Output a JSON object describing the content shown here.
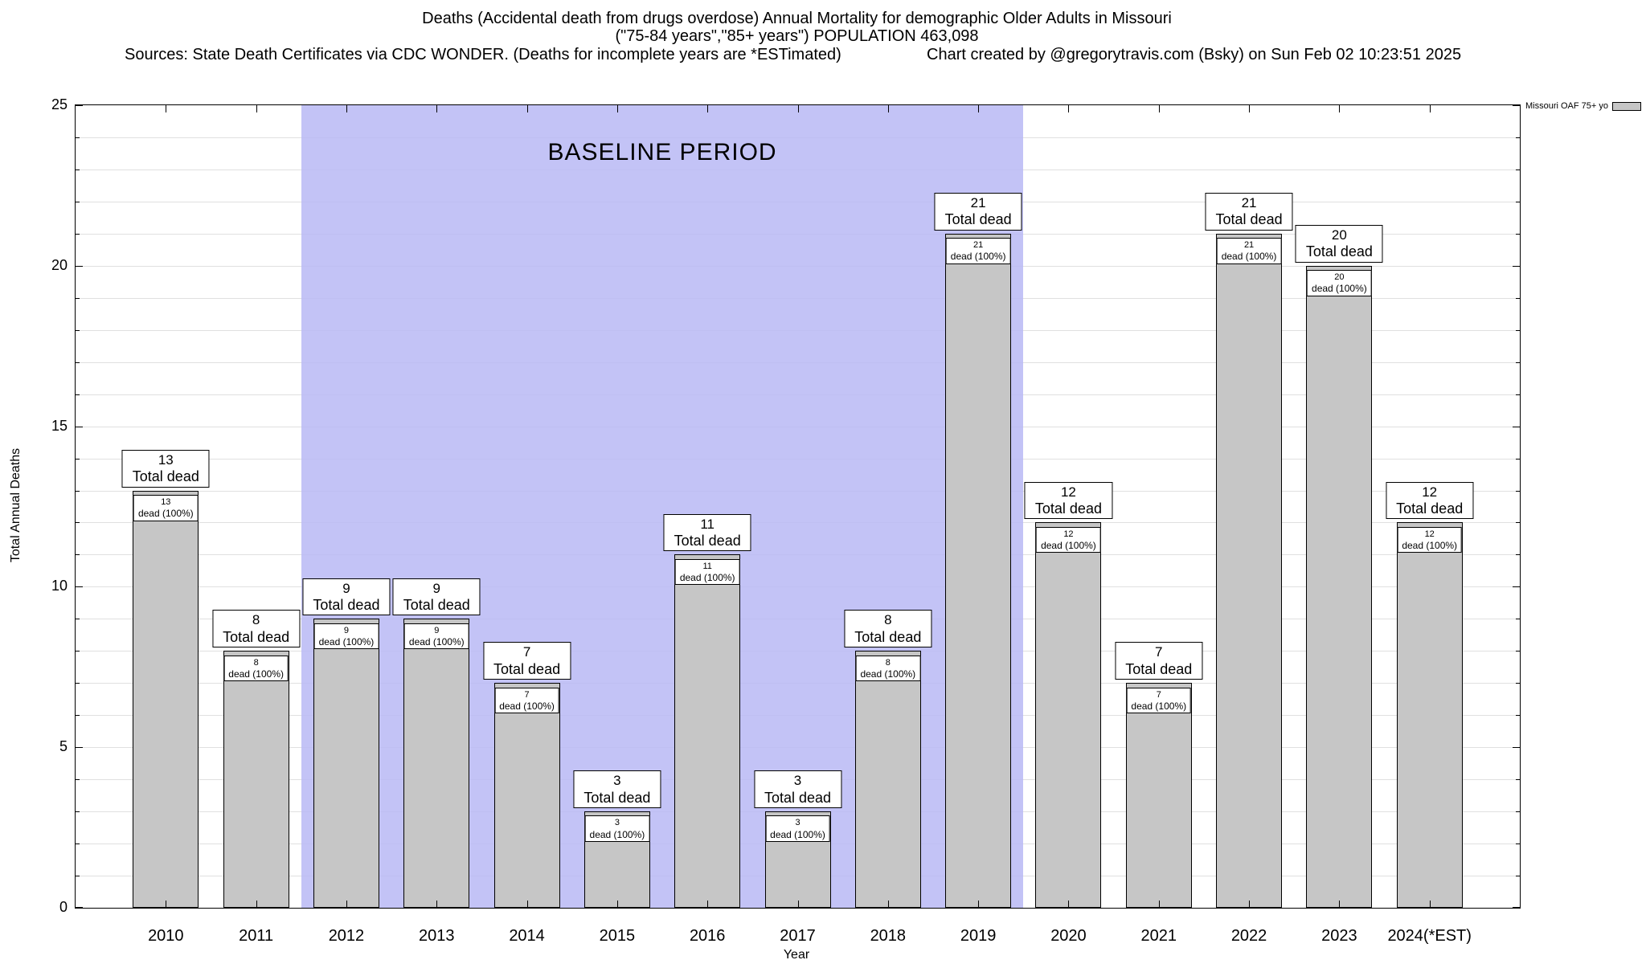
{
  "header": {
    "title_line1": "Deaths (Accidental death from drugs overdose) Annual Mortality for demographic Older Adults in Missouri",
    "title_line2": "(\"75-84 years\",\"85+ years\") POPULATION 463,098",
    "sources": "Sources: State Death Certificates via CDC WONDER. (Deaths for incomplete years are *ESTimated)",
    "credit": "Chart created by @gregorytravis.com (Bsky) on Sun Feb 02 10:23:51 2025"
  },
  "legend": {
    "label": "Missouri OAF 75+ yo",
    "swatch_color": "#c6c6c6"
  },
  "chart_data": {
    "type": "bar",
    "title": "Deaths (Accidental death from drugs overdose) Annual Mortality for demographic Older Adults in Missouri",
    "categories": [
      "2010",
      "2011",
      "2012",
      "2013",
      "2014",
      "2015",
      "2016",
      "2017",
      "2018",
      "2019",
      "2020",
      "2021",
      "2022",
      "2023",
      "2024(*EST)"
    ],
    "values": [
      13,
      8,
      9,
      9,
      7,
      3,
      11,
      3,
      8,
      21,
      12,
      7,
      21,
      20,
      12
    ],
    "bar_label_top": "Total dead",
    "bar_label_inner": "dead (100%)",
    "xlabel": "Year",
    "ylabel": "Total Annual Deaths",
    "ylim": [
      0,
      25
    ],
    "yticks": [
      0,
      5,
      10,
      15,
      20,
      25
    ],
    "grid": "horizontal minor gridlines every 1 unit",
    "legend_position": "top-right outside plot",
    "bar_color": "#c6c6c6",
    "baseline_region": {
      "label": "BASELINE PERIOD",
      "start_category": "2012",
      "end_category": "2019",
      "from_index": 1.5,
      "to_index": 9.5,
      "color": "#b8b8f4"
    }
  }
}
